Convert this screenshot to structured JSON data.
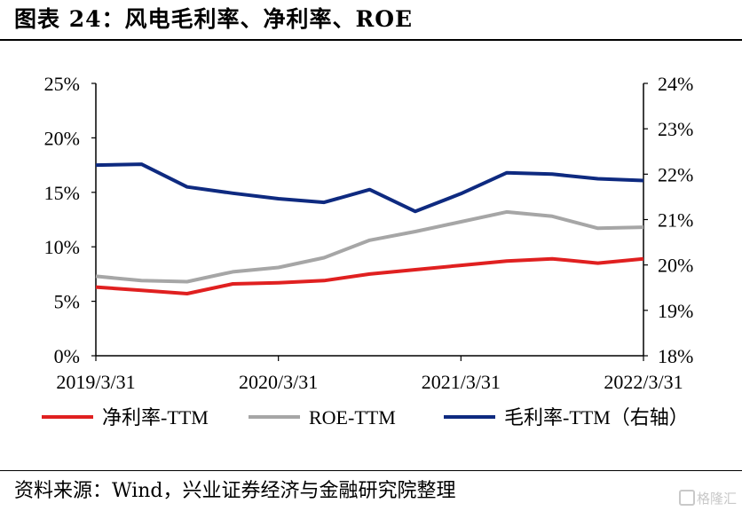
{
  "figure_title": "图表 24：风电毛利率、净利率、ROE",
  "source": "资料来源：Wind，兴业证券经济与金融研究院整理",
  "watermark": "格隆汇",
  "chart_data": {
    "type": "line",
    "title": "",
    "x": [
      "2019/3/31",
      "2019/6/30",
      "2019/9/30",
      "2019/12/31",
      "2020/3/31",
      "2020/6/30",
      "2020/9/30",
      "2020/12/31",
      "2021/3/31",
      "2021/6/30",
      "2021/9/30",
      "2021/12/31",
      "2022/3/31"
    ],
    "x_tick_labels": [
      "2019/3/31",
      "2020/3/31",
      "2021/3/31",
      "2022/3/31"
    ],
    "left_axis": {
      "ylim": [
        0,
        25
      ],
      "ticks": [
        "0%",
        "5%",
        "10%",
        "15%",
        "20%",
        "25%"
      ],
      "unit": "%"
    },
    "right_axis": {
      "ylim": [
        18,
        24
      ],
      "ticks": [
        "18%",
        "19%",
        "20%",
        "21%",
        "22%",
        "23%",
        "24%"
      ],
      "unit": "%"
    },
    "series": [
      {
        "name": "净利率-TTM",
        "axis": "left",
        "color": "#e02020",
        "values": [
          6.3,
          6.0,
          5.7,
          6.6,
          6.7,
          6.9,
          7.5,
          7.9,
          8.3,
          8.7,
          8.9,
          8.5,
          8.9
        ]
      },
      {
        "name": "ROE-TTM",
        "axis": "left",
        "color": "#a6a6a6",
        "values": [
          7.3,
          6.9,
          6.8,
          7.7,
          8.1,
          9.0,
          10.6,
          11.4,
          12.3,
          13.2,
          12.8,
          11.7,
          11.8
        ]
      },
      {
        "name": "毛利率-TTM（右轴）",
        "axis": "right",
        "color": "#0e2a80",
        "values": [
          22.2,
          22.22,
          21.72,
          21.58,
          21.46,
          21.38,
          21.66,
          21.18,
          21.57,
          22.03,
          22.0,
          21.9,
          21.86
        ]
      }
    ],
    "grid": false,
    "legend_position": "bottom"
  }
}
